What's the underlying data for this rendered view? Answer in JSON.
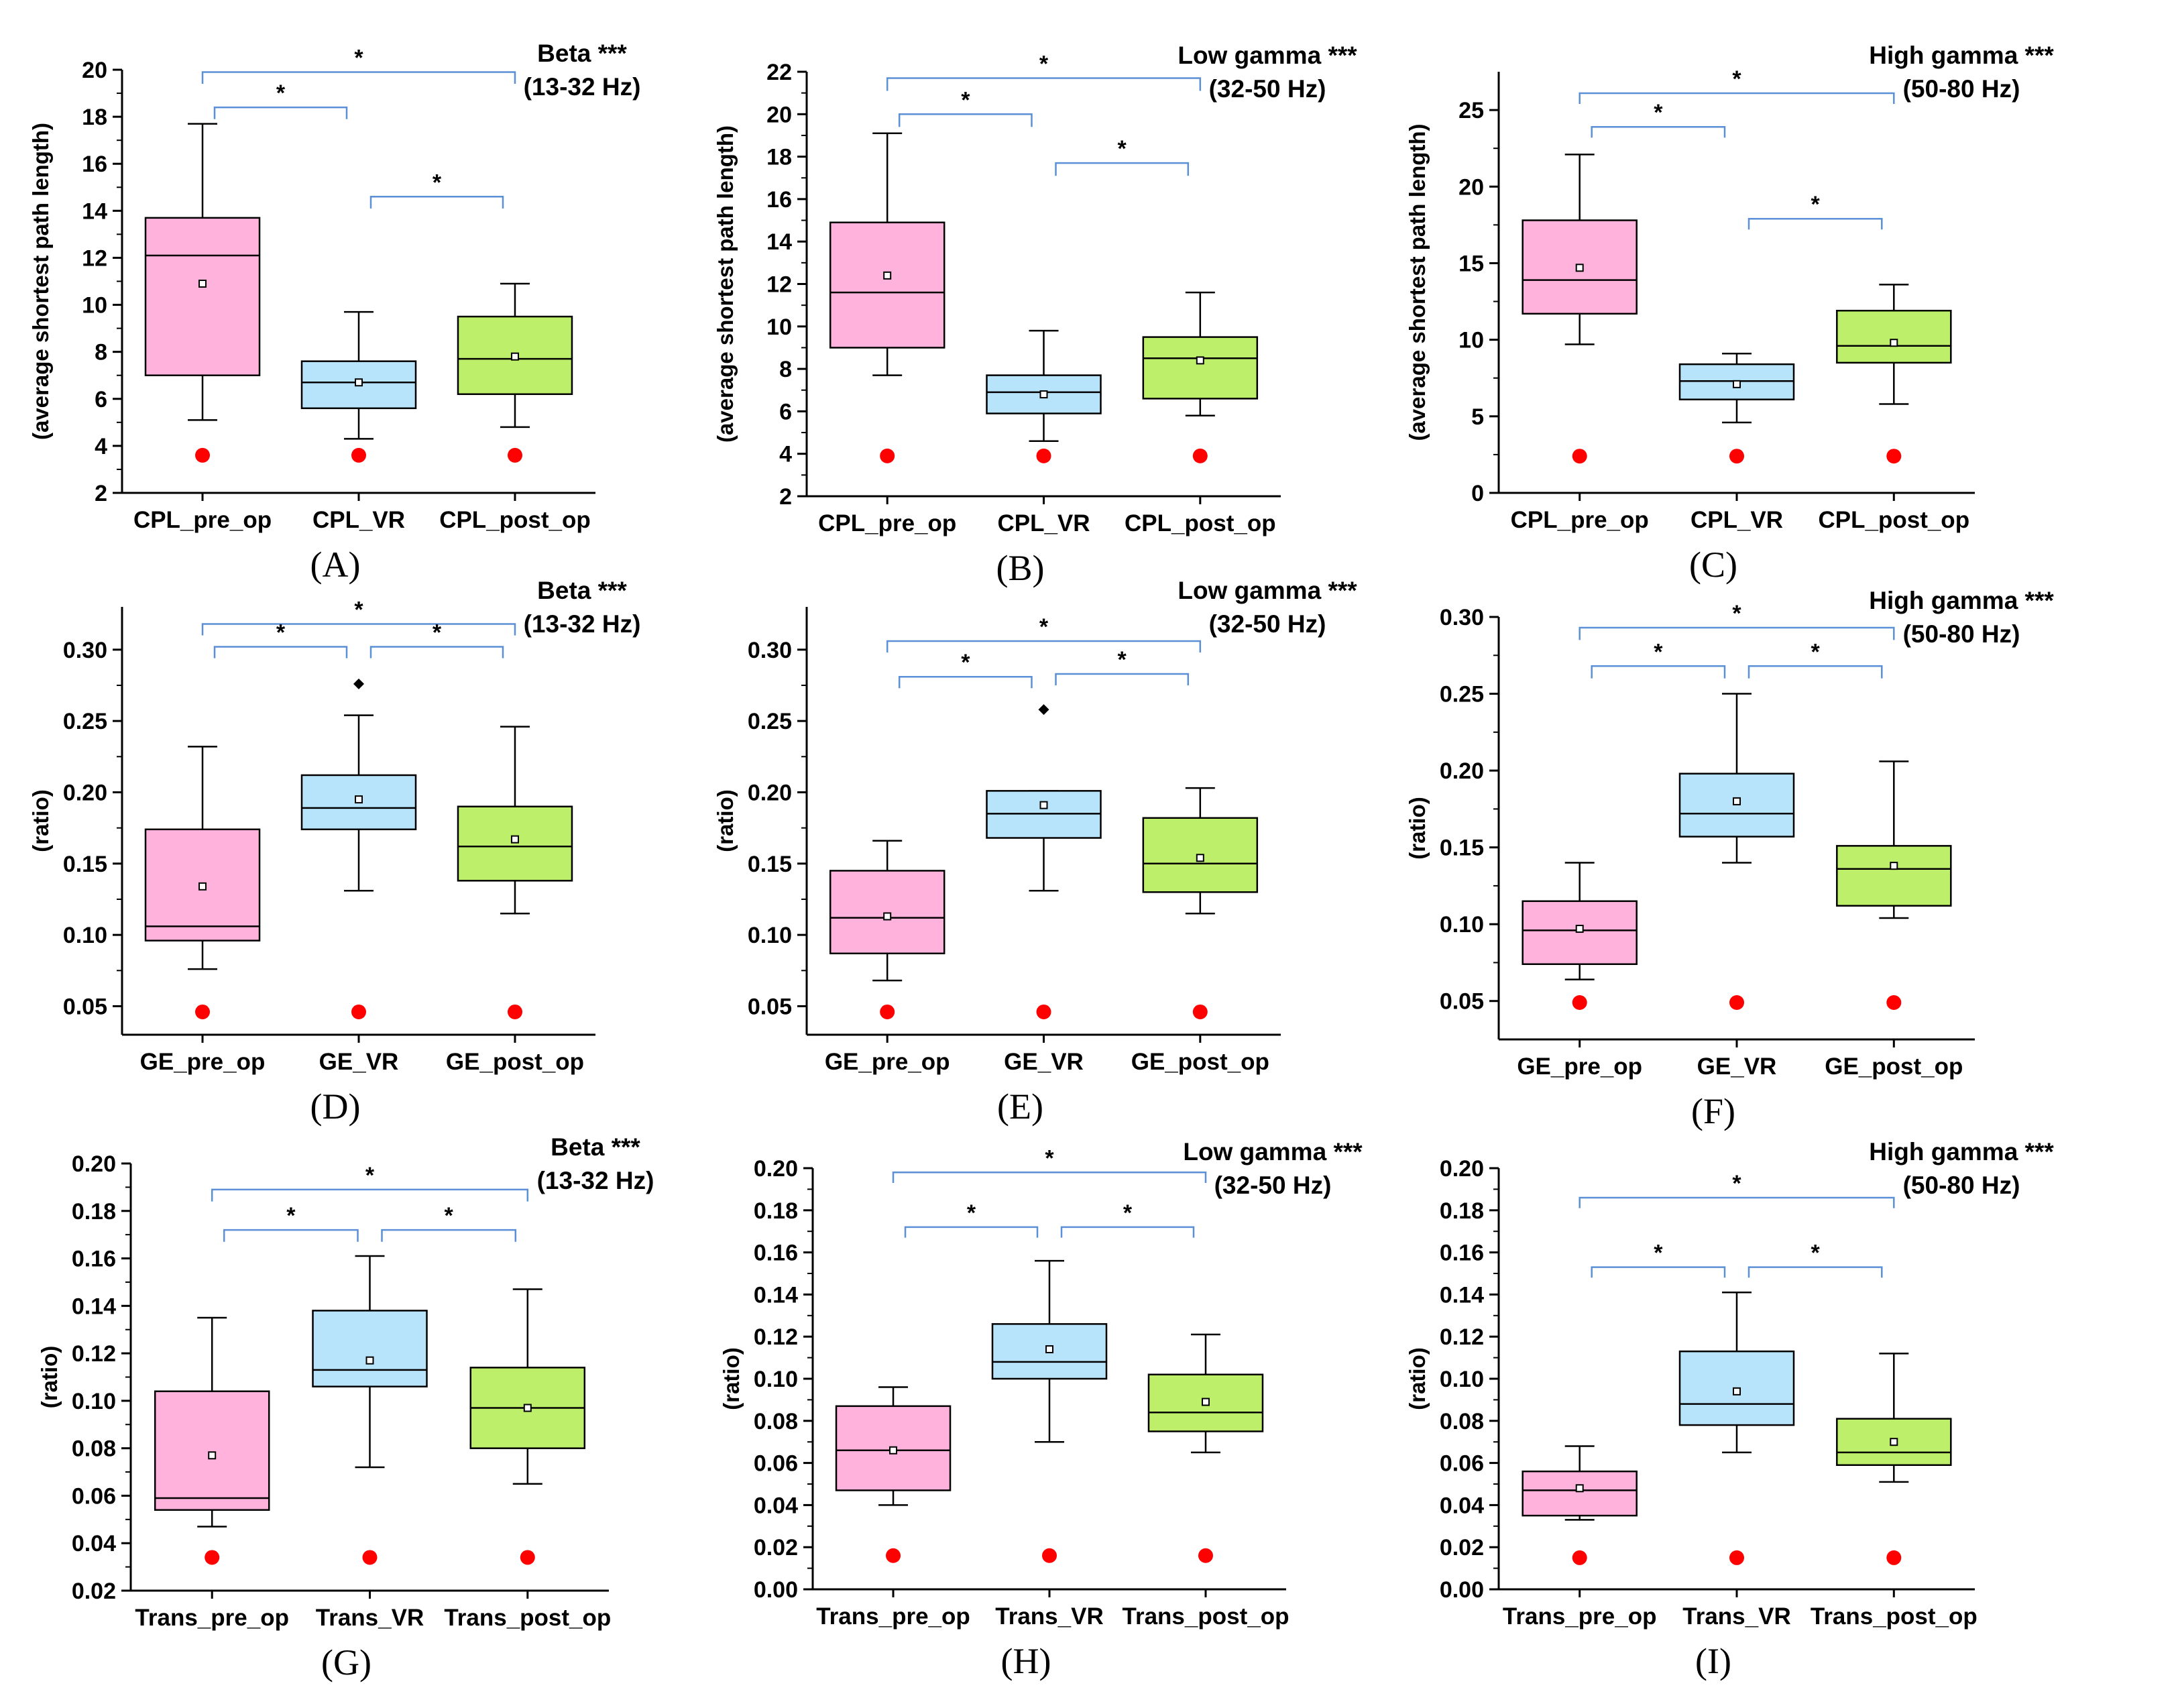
{
  "colors": {
    "pre": "#ffb3dc",
    "vr": "#b7e3fb",
    "post": "#bdef6a",
    "bracket": "#5b8fd6",
    "dot": "#ff0000",
    "axis": "#000000"
  },
  "chart_data": [
    {
      "id": "A",
      "caption": "(A)",
      "type": "box",
      "ylabel": "(average shortest path length)",
      "annotation": [
        "Beta ***",
        "(13-32 Hz)"
      ],
      "ylim": [
        2,
        20
      ],
      "yticks": [
        2,
        4,
        6,
        8,
        10,
        12,
        14,
        16,
        18,
        20
      ],
      "ytick_labels": [
        "2",
        "4",
        "6",
        "8",
        "10",
        "12",
        "14",
        "16",
        "18",
        "20"
      ],
      "categories": [
        "CPL_pre_op",
        "CPL_VR",
        "CPL_post_op"
      ],
      "boxes": [
        {
          "whisker_low": 5.1,
          "q1": 7.0,
          "median": 12.1,
          "q3": 13.7,
          "whisker_high": 17.7,
          "mean": 10.9,
          "outliers": [],
          "dot": 3.6
        },
        {
          "whisker_low": 4.3,
          "q1": 5.6,
          "median": 6.7,
          "q3": 7.6,
          "whisker_high": 9.7,
          "mean": 6.7,
          "outliers": [],
          "dot": 3.6
        },
        {
          "whisker_low": 4.8,
          "q1": 6.2,
          "median": 7.7,
          "q3": 9.5,
          "whisker_high": 10.9,
          "mean": 7.8,
          "outliers": [],
          "dot": 3.6
        }
      ],
      "significance": [
        {
          "from": 0,
          "to": 2,
          "label": "*",
          "y": 19.9,
          "drop": 0.5,
          "level": "top"
        },
        {
          "from": 0,
          "to": 1,
          "label": "*",
          "y": 18.4,
          "drop": 0.5,
          "level": "low"
        },
        {
          "from": 1,
          "to": 2,
          "label": "*",
          "y": 14.6,
          "drop": 0.5,
          "level": "low"
        }
      ]
    },
    {
      "id": "B",
      "caption": "(B)",
      "type": "box",
      "ylabel": "(average shortest path length)",
      "annotation": [
        "Low gamma ***",
        "(32-50 Hz)"
      ],
      "ylim": [
        2,
        22
      ],
      "yticks": [
        2,
        4,
        6,
        8,
        10,
        12,
        14,
        16,
        18,
        20,
        22
      ],
      "ytick_labels": [
        "2",
        "4",
        "6",
        "8",
        "10",
        "12",
        "14",
        "16",
        "18",
        "20",
        "22"
      ],
      "categories": [
        "CPL_pre_op",
        "CPL_VR",
        "CPL_post_op"
      ],
      "boxes": [
        {
          "whisker_low": 7.7,
          "q1": 9.0,
          "median": 11.6,
          "q3": 14.9,
          "whisker_high": 19.1,
          "mean": 12.4,
          "outliers": [],
          "dot": 3.9
        },
        {
          "whisker_low": 4.6,
          "q1": 5.9,
          "median": 6.9,
          "q3": 7.7,
          "whisker_high": 9.8,
          "mean": 6.8,
          "outliers": [],
          "dot": 3.9
        },
        {
          "whisker_low": 5.8,
          "q1": 6.6,
          "median": 8.5,
          "q3": 9.5,
          "whisker_high": 11.6,
          "mean": 8.4,
          "outliers": [],
          "dot": 3.9
        }
      ],
      "significance": [
        {
          "from": 0,
          "to": 2,
          "label": "*",
          "y": 21.7,
          "drop": 0.6,
          "level": "top"
        },
        {
          "from": 0,
          "to": 1,
          "label": "*",
          "y": 20.0,
          "drop": 0.6,
          "level": "low"
        },
        {
          "from": 1,
          "to": 2,
          "label": "*",
          "y": 17.7,
          "drop": 0.6,
          "level": "low"
        }
      ]
    },
    {
      "id": "C",
      "caption": "(C)",
      "type": "box",
      "ylabel": "(average shortest path length)",
      "annotation": [
        "High gamma ***",
        "(50-80 Hz)"
      ],
      "ylim": [
        0,
        27.5
      ],
      "yticks": [
        0,
        5,
        10,
        15,
        20,
        25
      ],
      "ytick_labels": [
        "0",
        "5",
        "10",
        "15",
        "20",
        "25"
      ],
      "categories": [
        "CPL_pre_op",
        "CPL_VR",
        "CPL_post_op"
      ],
      "boxes": [
        {
          "whisker_low": 9.7,
          "q1": 11.7,
          "median": 13.9,
          "q3": 17.8,
          "whisker_high": 22.1,
          "mean": 14.7,
          "outliers": [],
          "dot": 2.4
        },
        {
          "whisker_low": 4.6,
          "q1": 6.1,
          "median": 7.3,
          "q3": 8.4,
          "whisker_high": 9.1,
          "mean": 7.1,
          "outliers": [],
          "dot": 2.4
        },
        {
          "whisker_low": 5.8,
          "q1": 8.5,
          "median": 9.6,
          "q3": 11.9,
          "whisker_high": 13.6,
          "mean": 9.8,
          "outliers": [],
          "dot": 2.4
        }
      ],
      "significance": [
        {
          "from": 0,
          "to": 2,
          "label": "*",
          "y": 26.1,
          "drop": 0.7,
          "level": "top"
        },
        {
          "from": 0,
          "to": 1,
          "label": "*",
          "y": 23.9,
          "drop": 0.7,
          "level": "low"
        },
        {
          "from": 1,
          "to": 2,
          "label": "*",
          "y": 17.9,
          "drop": 0.7,
          "level": "low"
        }
      ]
    },
    {
      "id": "D",
      "caption": "(D)",
      "type": "box",
      "ylabel": "(ratio)",
      "annotation": [
        "Beta ***",
        "(13-32 Hz)"
      ],
      "ylim": [
        0.03,
        0.33
      ],
      "yticks": [
        0.05,
        0.1,
        0.15,
        0.2,
        0.25,
        0.3
      ],
      "ytick_labels": [
        "0.05",
        "0.10",
        "0.15",
        "0.20",
        "0.25",
        "0.30"
      ],
      "categories": [
        "GE_pre_op",
        "GE_VR",
        "GE_post_op"
      ],
      "boxes": [
        {
          "whisker_low": 0.076,
          "q1": 0.096,
          "median": 0.106,
          "q3": 0.174,
          "whisker_high": 0.232,
          "mean": 0.134,
          "outliers": [],
          "dot": 0.046
        },
        {
          "whisker_low": 0.131,
          "q1": 0.174,
          "median": 0.189,
          "q3": 0.212,
          "whisker_high": 0.254,
          "mean": 0.195,
          "outliers": [
            0.276
          ],
          "dot": 0.046
        },
        {
          "whisker_low": 0.115,
          "q1": 0.138,
          "median": 0.162,
          "q3": 0.19,
          "whisker_high": 0.246,
          "mean": 0.167,
          "outliers": [],
          "dot": 0.046
        }
      ],
      "significance": [
        {
          "from": 0,
          "to": 2,
          "label": "*",
          "y": 0.318,
          "drop": 0.008,
          "level": "top"
        },
        {
          "from": 0,
          "to": 1,
          "label": "*",
          "y": 0.302,
          "drop": 0.008,
          "level": "low"
        },
        {
          "from": 1,
          "to": 2,
          "label": "*",
          "y": 0.302,
          "drop": 0.008,
          "level": "low"
        }
      ]
    },
    {
      "id": "E",
      "caption": "(E)",
      "type": "box",
      "ylabel": "(ratio)",
      "annotation": [
        "Low gamma ***",
        "(32-50 Hz)"
      ],
      "ylim": [
        0.03,
        0.33
      ],
      "yticks": [
        0.05,
        0.1,
        0.15,
        0.2,
        0.25,
        0.3
      ],
      "ytick_labels": [
        "0.05",
        "0.10",
        "0.15",
        "0.20",
        "0.25",
        "0.30"
      ],
      "categories": [
        "GE_pre_op",
        "GE_VR",
        "GE_post_op"
      ],
      "boxes": [
        {
          "whisker_low": 0.068,
          "q1": 0.087,
          "median": 0.112,
          "q3": 0.145,
          "whisker_high": 0.166,
          "mean": 0.113,
          "outliers": [],
          "dot": 0.046
        },
        {
          "whisker_low": 0.131,
          "q1": 0.168,
          "median": 0.185,
          "q3": 0.201,
          "whisker_high": 0.201,
          "mean": 0.191,
          "outliers": [
            0.258
          ],
          "dot": 0.046
        },
        {
          "whisker_low": 0.115,
          "q1": 0.13,
          "median": 0.15,
          "q3": 0.182,
          "whisker_high": 0.203,
          "mean": 0.154,
          "outliers": [],
          "dot": 0.046
        }
      ],
      "significance": [
        {
          "from": 0,
          "to": 2,
          "label": "*",
          "y": 0.306,
          "drop": 0.008,
          "level": "top"
        },
        {
          "from": 0,
          "to": 1,
          "label": "*",
          "y": 0.281,
          "drop": 0.008,
          "level": "low"
        },
        {
          "from": 1,
          "to": 2,
          "label": "*",
          "y": 0.283,
          "drop": 0.008,
          "level": "low"
        }
      ]
    },
    {
      "id": "F",
      "caption": "(F)",
      "type": "box",
      "ylabel": "(ratio)",
      "annotation": [
        "High gamma ***",
        "(50-80 Hz)"
      ],
      "ylim": [
        0.025,
        0.3
      ],
      "yticks": [
        0.05,
        0.1,
        0.15,
        0.2,
        0.25,
        0.3
      ],
      "ytick_labels": [
        "0.05",
        "0.10",
        "0.15",
        "0.20",
        "0.25",
        "0.30"
      ],
      "categories": [
        "GE_pre_op",
        "GE_VR",
        "GE_post_op"
      ],
      "boxes": [
        {
          "whisker_low": 0.064,
          "q1": 0.074,
          "median": 0.096,
          "q3": 0.115,
          "whisker_high": 0.14,
          "mean": 0.097,
          "outliers": [],
          "dot": 0.049
        },
        {
          "whisker_low": 0.14,
          "q1": 0.157,
          "median": 0.172,
          "q3": 0.198,
          "whisker_high": 0.25,
          "mean": 0.18,
          "outliers": [],
          "dot": 0.049
        },
        {
          "whisker_low": 0.104,
          "q1": 0.112,
          "median": 0.136,
          "q3": 0.151,
          "whisker_high": 0.206,
          "mean": 0.138,
          "outliers": [],
          "dot": 0.049
        }
      ],
      "significance": [
        {
          "from": 0,
          "to": 2,
          "label": "*",
          "y": 0.293,
          "drop": 0.008,
          "level": "top"
        },
        {
          "from": 0,
          "to": 1,
          "label": "*",
          "y": 0.268,
          "drop": 0.008,
          "level": "low"
        },
        {
          "from": 1,
          "to": 2,
          "label": "*",
          "y": 0.268,
          "drop": 0.008,
          "level": "low"
        }
      ]
    },
    {
      "id": "G",
      "caption": "(G)",
      "type": "box",
      "ylabel": "(ratio)",
      "annotation": [
        "Beta ***",
        "(13-32 Hz)"
      ],
      "ylim": [
        0.02,
        0.2
      ],
      "yticks": [
        0.02,
        0.04,
        0.06,
        0.08,
        0.1,
        0.12,
        0.14,
        0.16,
        0.18,
        0.2
      ],
      "ytick_labels": [
        "0.02",
        "0.04",
        "0.06",
        "0.08",
        "0.10",
        "0.12",
        "0.14",
        "0.16",
        "0.18",
        "0.20"
      ],
      "categories": [
        "Trans_pre_op",
        "Trans_VR",
        "Trans_post_op"
      ],
      "boxes": [
        {
          "whisker_low": 0.047,
          "q1": 0.054,
          "median": 0.059,
          "q3": 0.104,
          "whisker_high": 0.135,
          "mean": 0.077,
          "outliers": [],
          "dot": 0.034
        },
        {
          "whisker_low": 0.072,
          "q1": 0.106,
          "median": 0.113,
          "q3": 0.138,
          "whisker_high": 0.161,
          "mean": 0.117,
          "outliers": [],
          "dot": 0.034
        },
        {
          "whisker_low": 0.065,
          "q1": 0.08,
          "median": 0.097,
          "q3": 0.114,
          "whisker_high": 0.147,
          "mean": 0.097,
          "outliers": [],
          "dot": 0.034
        }
      ],
      "significance": [
        {
          "from": 0,
          "to": 2,
          "label": "*",
          "y": 0.189,
          "drop": 0.005,
          "level": "top"
        },
        {
          "from": 0,
          "to": 1,
          "label": "*",
          "y": 0.172,
          "drop": 0.005,
          "level": "low"
        },
        {
          "from": 1,
          "to": 2,
          "label": "*",
          "y": 0.172,
          "drop": 0.005,
          "level": "low"
        }
      ]
    },
    {
      "id": "H",
      "caption": "(H)",
      "type": "box",
      "ylabel": "(ratio)",
      "annotation": [
        "Low gamma ***",
        "(32-50 Hz)"
      ],
      "ylim": [
        0.0,
        0.2
      ],
      "yticks": [
        0.0,
        0.02,
        0.04,
        0.06,
        0.08,
        0.1,
        0.12,
        0.14,
        0.16,
        0.18,
        0.2
      ],
      "ytick_labels": [
        "0.00",
        "0.02",
        "0.04",
        "0.06",
        "0.08",
        "0.10",
        "0.12",
        "0.14",
        "0.16",
        "0.18",
        "0.20"
      ],
      "categories": [
        "Trans_pre_op",
        "Trans_VR",
        "Trans_post_op"
      ],
      "boxes": [
        {
          "whisker_low": 0.04,
          "q1": 0.047,
          "median": 0.066,
          "q3": 0.087,
          "whisker_high": 0.096,
          "mean": 0.066,
          "outliers": [],
          "dot": 0.016
        },
        {
          "whisker_low": 0.07,
          "q1": 0.1,
          "median": 0.108,
          "q3": 0.126,
          "whisker_high": 0.156,
          "mean": 0.114,
          "outliers": [],
          "dot": 0.016
        },
        {
          "whisker_low": 0.065,
          "q1": 0.075,
          "median": 0.084,
          "q3": 0.102,
          "whisker_high": 0.121,
          "mean": 0.089,
          "outliers": [],
          "dot": 0.016
        }
      ],
      "significance": [
        {
          "from": 0,
          "to": 2,
          "label": "*",
          "y": 0.198,
          "drop": 0.005,
          "level": "top"
        },
        {
          "from": 0,
          "to": 1,
          "label": "*",
          "y": 0.172,
          "drop": 0.005,
          "level": "low"
        },
        {
          "from": 1,
          "to": 2,
          "label": "*",
          "y": 0.172,
          "drop": 0.005,
          "level": "low"
        }
      ]
    },
    {
      "id": "I",
      "caption": "(I)",
      "type": "box",
      "ylabel": "(ratio)",
      "annotation": [
        "High gamma ***",
        "(50-80 Hz)"
      ],
      "ylim": [
        0.0,
        0.2
      ],
      "yticks": [
        0.0,
        0.02,
        0.04,
        0.06,
        0.08,
        0.1,
        0.12,
        0.14,
        0.16,
        0.18,
        0.2
      ],
      "ytick_labels": [
        "0.00",
        "0.02",
        "0.04",
        "0.06",
        "0.08",
        "0.10",
        "0.12",
        "0.14",
        "0.16",
        "0.18",
        "0.20"
      ],
      "categories": [
        "Trans_pre_op",
        "Trans_VR",
        "Trans_post_op"
      ],
      "boxes": [
        {
          "whisker_low": 0.033,
          "q1": 0.035,
          "median": 0.047,
          "q3": 0.056,
          "whisker_high": 0.068,
          "mean": 0.048,
          "outliers": [],
          "dot": 0.015
        },
        {
          "whisker_low": 0.065,
          "q1": 0.078,
          "median": 0.088,
          "q3": 0.113,
          "whisker_high": 0.141,
          "mean": 0.094,
          "outliers": [],
          "dot": 0.015
        },
        {
          "whisker_low": 0.051,
          "q1": 0.059,
          "median": 0.065,
          "q3": 0.081,
          "whisker_high": 0.112,
          "mean": 0.07,
          "outliers": [],
          "dot": 0.015
        }
      ],
      "significance": [
        {
          "from": 0,
          "to": 2,
          "label": "*",
          "y": 0.186,
          "drop": 0.005,
          "level": "top"
        },
        {
          "from": 0,
          "to": 1,
          "label": "*",
          "y": 0.153,
          "drop": 0.005,
          "level": "low"
        },
        {
          "from": 1,
          "to": 2,
          "label": "*",
          "y": 0.153,
          "drop": 0.005,
          "level": "low"
        }
      ]
    }
  ]
}
